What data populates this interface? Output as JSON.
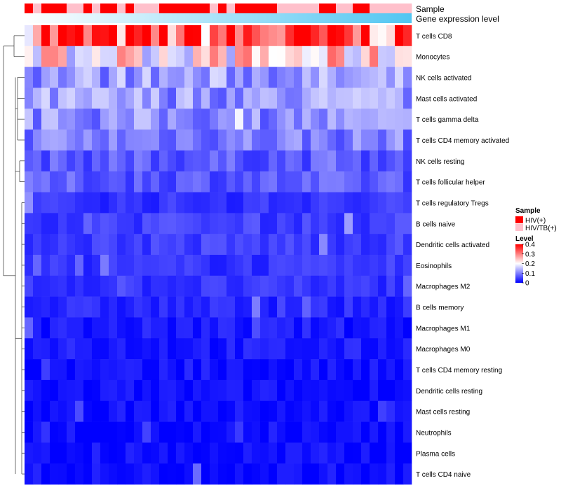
{
  "chart_data": {
    "type": "heatmap",
    "annotation_tracks": [
      "Sample",
      "Gene expression level"
    ],
    "sample_groups": [
      "HIV(+)",
      "HIV/TB(+)",
      "HIV(+)",
      "HIV(+)",
      "HIV(+)",
      "HIV/TB(+)",
      "HIV/TB(+)",
      "HIV(+)",
      "HIV/TB(+)",
      "HIV(+)",
      "HIV(+)",
      "HIV/TB(+)",
      "HIV(+)",
      "HIV/TB(+)",
      "HIV/TB(+)",
      "HIV/TB(+)",
      "HIV(+)",
      "HIV(+)",
      "HIV(+)",
      "HIV(+)",
      "HIV(+)",
      "HIV(+)",
      "HIV/TB(+)",
      "HIV(+)",
      "HIV/TB(+)",
      "HIV(+)",
      "HIV(+)",
      "HIV(+)",
      "HIV(+)",
      "HIV(+)",
      "HIV/TB(+)",
      "HIV/TB(+)",
      "HIV/TB(+)",
      "HIV/TB(+)",
      "HIV/TB(+)",
      "HIV(+)",
      "HIV(+)",
      "HIV/TB(+)",
      "HIV/TB(+)",
      "HIV(+)",
      "HIV(+)",
      "HIV/TB(+)",
      "HIV/TB(+)",
      "HIV/TB(+)",
      "HIV/TB(+)",
      "HIV/TB(+)"
    ],
    "expression_gradient": [
      "#ffffff",
      "#52c6f2"
    ],
    "rows": [
      "T cells CD8",
      "Monocytes",
      "NK cells activated",
      "Mast cells activated",
      "T cells gamma delta",
      "T cells CD4 memory activated",
      "NK cells resting",
      "T cells follicular helper",
      "T cells regulatory  Tregs",
      "B cells naive",
      "Dendritic cells activated",
      "Eosinophils",
      "Macrophages M2",
      "B cells memory",
      "Macrophages M1",
      "Macrophages M0",
      "T cells CD4 memory resting",
      "Dendritic cells resting",
      "Mast cells resting",
      "Neutrophils",
      "Plasma cells",
      "T cells CD4 naive"
    ],
    "row_means": [
      0.33,
      0.22,
      0.12,
      0.12,
      0.11,
      0.1,
      0.07,
      0.07,
      0.04,
      0.05,
      0.05,
      0.04,
      0.04,
      0.03,
      0.02,
      0.02,
      0.01,
      0.01,
      0.01,
      0.005,
      0.01,
      0.01
    ],
    "legend": {
      "sample_title": "Sample",
      "sample_items": [
        {
          "label": "HIV(+)",
          "color": "#ff0000"
        },
        {
          "label": "HIV/TB(+)",
          "color": "#ffc0cb"
        }
      ],
      "level_title": "Level",
      "level_ticks": [
        0,
        0.1,
        0.2,
        0.3,
        0.4
      ],
      "level_range": [
        0,
        0.4
      ],
      "level_colors": [
        "#0000ff",
        "#ffffff",
        "#ff0000"
      ]
    }
  }
}
